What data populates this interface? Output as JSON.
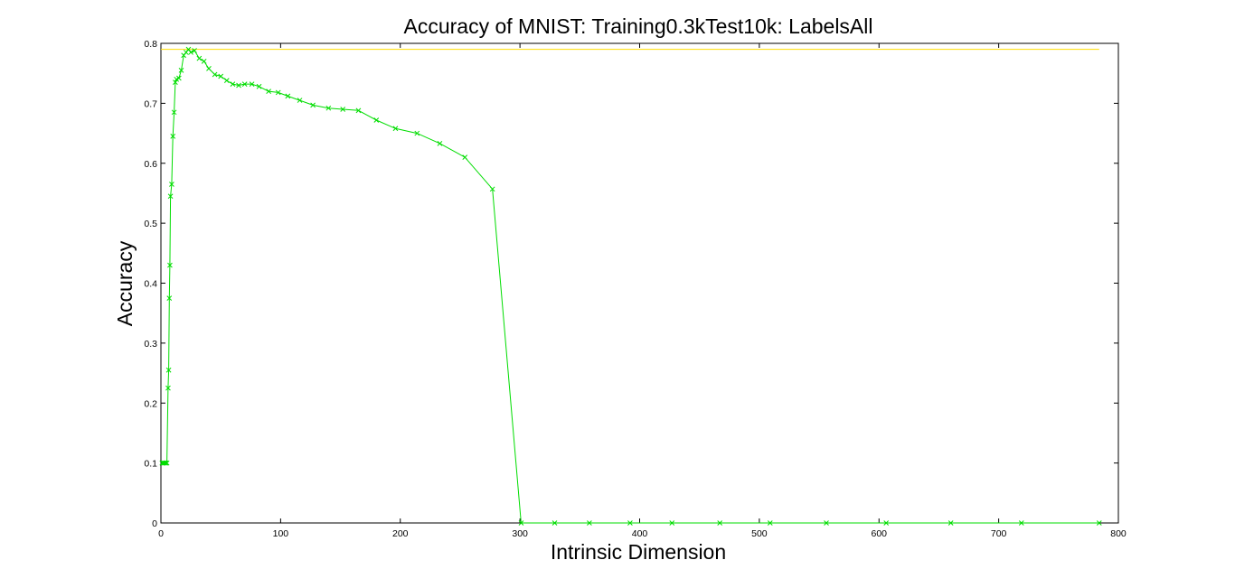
{
  "chart_data": {
    "type": "line",
    "title": "Accuracy of MNIST: Training0.3kTest10k: LabelsAll",
    "xlabel": "Intrinsic Dimension",
    "ylabel": "Accuracy",
    "xlim": [
      0,
      800
    ],
    "ylim": [
      0,
      0.8
    ],
    "xticks": [
      0,
      100,
      200,
      300,
      400,
      500,
      600,
      700,
      800
    ],
    "yticks": [
      0,
      0.1,
      0.2,
      0.3,
      0.4,
      0.5,
      0.6,
      0.7,
      0.8
    ],
    "xtick_labels": [
      "0",
      "100",
      "200",
      "300",
      "400",
      "500",
      "600",
      "700",
      "800"
    ],
    "ytick_labels": [
      "0",
      "0.1",
      "0.2",
      "0.3",
      "0.4",
      "0.5",
      "0.6",
      "0.7",
      "0.8"
    ],
    "grid": false,
    "series": [
      {
        "color": "#00dd00",
        "marker": "x",
        "x": [
          1,
          2,
          3,
          4,
          5,
          6,
          6.5,
          7,
          7.5,
          8,
          9,
          10,
          11,
          12,
          13,
          15,
          17,
          19,
          21,
          23,
          25,
          28,
          32,
          36,
          40,
          45,
          50,
          55,
          60,
          65,
          70,
          76,
          82,
          90,
          98,
          106,
          116,
          127,
          140,
          152,
          165,
          180,
          196,
          214,
          233,
          254,
          277,
          301,
          329,
          358,
          392,
          427,
          467,
          509,
          556,
          606,
          660,
          719,
          784
        ],
        "y": [
          0.1,
          0.1,
          0.1,
          0.1,
          0.1,
          0.225,
          0.255,
          0.375,
          0.43,
          0.545,
          0.565,
          0.645,
          0.685,
          0.735,
          0.74,
          0.742,
          0.755,
          0.78,
          0.785,
          0.79,
          0.785,
          0.788,
          0.775,
          0.77,
          0.758,
          0.748,
          0.745,
          0.738,
          0.732,
          0.73,
          0.732,
          0.732,
          0.728,
          0.72,
          0.718,
          0.712,
          0.705,
          0.697,
          0.692,
          0.69,
          0.688,
          0.672,
          0.658,
          0.65,
          0.633,
          0.61,
          0.557,
          0.0,
          0.0,
          0.0,
          0.0,
          0.0,
          0.0,
          0.0,
          0.0,
          0.0,
          0.0,
          0.0,
          0.0
        ]
      },
      {
        "color": "#ffdd00",
        "marker": "none",
        "x": [
          0,
          784
        ],
        "y": [
          0.79,
          0.79
        ]
      }
    ]
  }
}
